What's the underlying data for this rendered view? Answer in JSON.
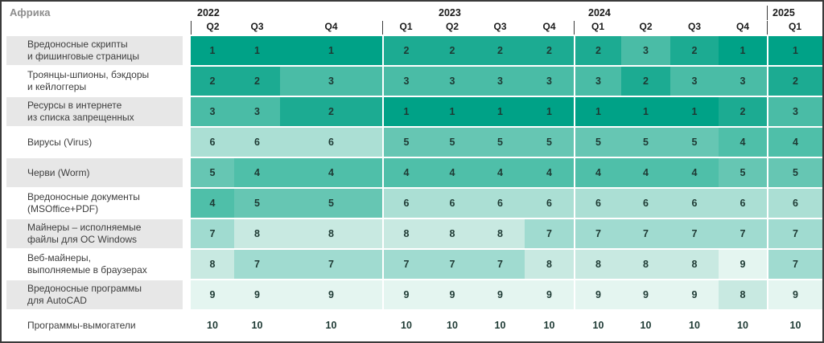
{
  "title": "Африка",
  "colors": {
    "rank_colors": {
      "1": "#00a287",
      "2": "#1cab92",
      "3": "#4abca6",
      "4": "#4fbfa9",
      "5": "#66c6b3",
      "6": "#abdfd4",
      "7": "#a0dbd0",
      "8": "#c8e9e1",
      "9": "#e4f5f0",
      "10": "#ffffff"
    },
    "label_alt_bg": "#e7e7e7",
    "header_text": "#1a1a1a",
    "title_text": "#8d8d8d",
    "cell_text": "#1e3a34",
    "border": "#3a3a3a"
  },
  "chart_data": {
    "type": "heatmap",
    "title": "Африка",
    "value_meaning": "rank of threat category per quarter (1 = top, 10 = bottom)",
    "legend_position": "none",
    "grid": false,
    "year_groups": [
      {
        "year": "2022",
        "quarters": [
          "Q2",
          "Q3",
          "Q4"
        ]
      },
      {
        "year": "2023",
        "quarters": [
          "Q1",
          "Q2",
          "Q3",
          "Q4"
        ]
      },
      {
        "year": "2024",
        "quarters": [
          "Q1",
          "Q2",
          "Q3",
          "Q4"
        ]
      },
      {
        "year": "2025",
        "quarters": [
          "Q1"
        ]
      }
    ],
    "columns": [
      "2022 Q2",
      "2022 Q3",
      "2022 Q4",
      "2023 Q1",
      "2023 Q2",
      "2023 Q3",
      "2023 Q4",
      "2024 Q1",
      "2024 Q2",
      "2024 Q3",
      "2024 Q4",
      "2025 Q1"
    ],
    "rows": [
      {
        "label": "Вредоносные скрипты\nи фишинговые страницы",
        "values": [
          1,
          1,
          1,
          2,
          2,
          2,
          2,
          2,
          3,
          2,
          1,
          1
        ]
      },
      {
        "label": "Троянцы-шпионы, бэкдоры\nи кейлоггеры",
        "values": [
          2,
          2,
          3,
          3,
          3,
          3,
          3,
          3,
          2,
          3,
          3,
          2
        ]
      },
      {
        "label": "Ресурсы в интернете\nиз списка запрещенных",
        "values": [
          3,
          3,
          2,
          1,
          1,
          1,
          1,
          1,
          1,
          1,
          2,
          3
        ]
      },
      {
        "label": "Вирусы (Virus)",
        "values": [
          6,
          6,
          6,
          5,
          5,
          5,
          5,
          5,
          5,
          5,
          4,
          4
        ]
      },
      {
        "label": "Черви (Worm)",
        "values": [
          5,
          4,
          4,
          4,
          4,
          4,
          4,
          4,
          4,
          4,
          5,
          5
        ]
      },
      {
        "label": "Вредоносные документы\n(MSOffice+PDF)",
        "values": [
          4,
          5,
          5,
          6,
          6,
          6,
          6,
          6,
          6,
          6,
          6,
          6
        ]
      },
      {
        "label": "Майнеры – исполняемые\nфайлы для ОС Windows",
        "values": [
          7,
          8,
          8,
          8,
          8,
          8,
          7,
          7,
          7,
          7,
          7,
          7
        ]
      },
      {
        "label": "Веб-майнеры,\nвыполняемые в браузерах",
        "values": [
          8,
          7,
          7,
          7,
          7,
          7,
          8,
          8,
          8,
          8,
          9,
          7
        ]
      },
      {
        "label": "Вредоносные программы\nдля AutoCAD",
        "values": [
          9,
          9,
          9,
          9,
          9,
          9,
          9,
          9,
          9,
          9,
          8,
          9
        ]
      },
      {
        "label": "Программы-вымогатели",
        "values": [
          10,
          10,
          10,
          10,
          10,
          10,
          10,
          10,
          10,
          10,
          10,
          10
        ]
      }
    ]
  }
}
